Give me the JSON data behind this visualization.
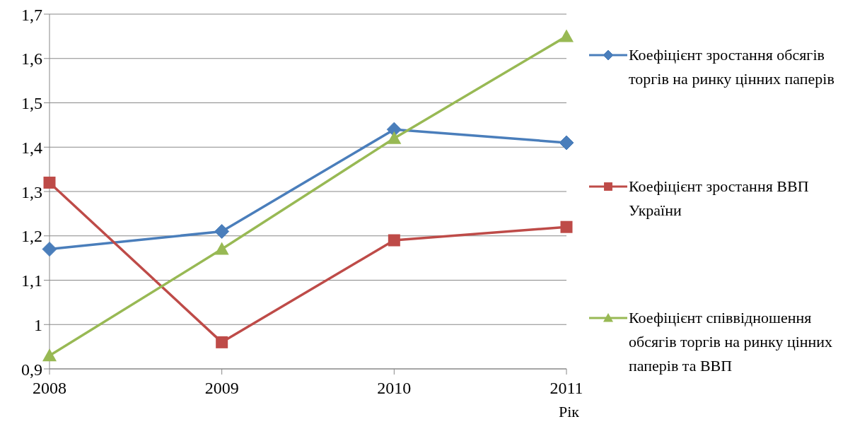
{
  "chart_data": {
    "type": "line",
    "categories": [
      "2008",
      "2009",
      "2010",
      "2011"
    ],
    "xlabel": "Рік",
    "series": [
      {
        "name": "Коефіцієнт зростання обсягів торгів на ринку цінних паперів",
        "color": "#4a7ebb",
        "marker": "diamond",
        "values": [
          1.17,
          1.21,
          1.44,
          1.41
        ]
      },
      {
        "name": "Коефіцієнт зростання ВВП України",
        "color": "#be4b48",
        "marker": "square",
        "values": [
          1.32,
          0.96,
          1.19,
          1.22
        ]
      },
      {
        "name": "Коефіцієнт співвідношення обсягів торгів на ринку цінних паперів та ВВП",
        "color": "#98b954",
        "marker": "triangle",
        "values": [
          0.93,
          1.17,
          1.42,
          1.65
        ]
      }
    ],
    "ylim": [
      0.9,
      1.7
    ],
    "yticks": [
      {
        "value": 0.9,
        "label": "0,9"
      },
      1,
      {
        "value": 1.1,
        "label": "1,1"
      },
      {
        "value": 1.2,
        "label": "1,2"
      },
      {
        "value": 1.3,
        "label": "1,3"
      },
      {
        "value": 1.4,
        "label": "1,4"
      },
      {
        "value": 1.5,
        "label": "1,5"
      },
      {
        "value": 1.6,
        "label": "1,6"
      },
      {
        "value": 1.7,
        "label": "1,7"
      }
    ],
    "grid": "y",
    "legend": "right"
  }
}
